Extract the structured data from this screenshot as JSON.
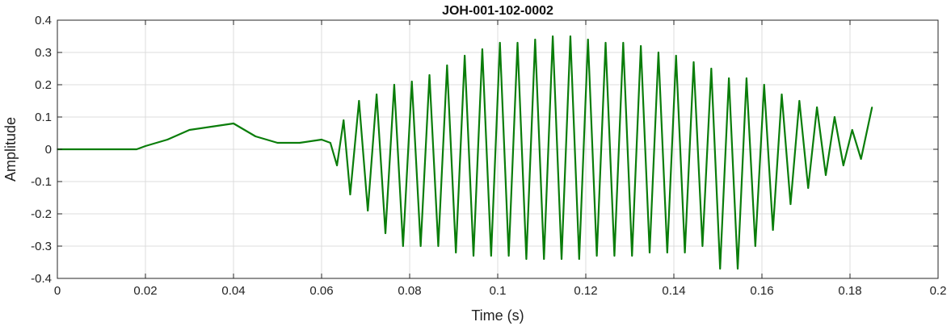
{
  "chart_data": {
    "type": "line",
    "title": "JOH-001-102-0002",
    "xlabel": "Time (s)",
    "ylabel": "Amplitude",
    "xlim": [
      0,
      0.2
    ],
    "ylim": [
      -0.4,
      0.4
    ],
    "xticks": [
      0,
      0.02,
      0.04,
      0.06,
      0.08,
      0.1,
      0.12,
      0.14,
      0.16,
      0.18,
      0.2
    ],
    "xtick_labels": [
      "0",
      "0.02",
      "0.04",
      "0.06",
      "0.08",
      "0.1",
      "0.12",
      "0.14",
      "0.16",
      "0.18",
      "0.2"
    ],
    "yticks": [
      0.4,
      0.3,
      0.2,
      0.1,
      0,
      -0.1,
      -0.2,
      -0.3,
      -0.4
    ],
    "ytick_labels": [
      "0.4",
      "0.3",
      "0.2",
      "0.1",
      "0",
      "-0.1",
      "-0.2",
      "-0.3",
      "-0.4"
    ],
    "grid": true,
    "line_color": "#0a7d0a",
    "series": [
      {
        "x": [
          0,
          0.018,
          0.02,
          0.025,
          0.03,
          0.035,
          0.04,
          0.045,
          0.05,
          0.055,
          0.06,
          0.062,
          0.0635,
          0.065,
          0.0665,
          0.0685,
          0.0705,
          0.0725,
          0.0745,
          0.0765,
          0.0785,
          0.0805,
          0.0825,
          0.0845,
          0.0865,
          0.0885,
          0.0905,
          0.0925,
          0.0945,
          0.0965,
          0.0985,
          0.1005,
          0.1025,
          0.1045,
          0.1065,
          0.1085,
          0.1105,
          0.1125,
          0.1145,
          0.1165,
          0.1185,
          0.1205,
          0.1225,
          0.1245,
          0.1265,
          0.1285,
          0.1305,
          0.1325,
          0.1345,
          0.1365,
          0.1385,
          0.1405,
          0.1425,
          0.1445,
          0.1465,
          0.1485,
          0.1505,
          0.1525,
          0.1545,
          0.1565,
          0.1585,
          0.1605,
          0.1625,
          0.1645,
          0.1665,
          0.1685,
          0.1705,
          0.1725,
          0.1745,
          0.1765,
          0.1785,
          0.1805,
          0.1825,
          0.185
        ],
        "y": [
          0,
          0,
          0.01,
          0.03,
          0.06,
          0.07,
          0.08,
          0.04,
          0.02,
          0.02,
          0.03,
          0.02,
          -0.05,
          0.09,
          -0.14,
          0.15,
          -0.19,
          0.17,
          -0.26,
          0.2,
          -0.3,
          0.21,
          -0.3,
          0.23,
          -0.3,
          0.26,
          -0.32,
          0.29,
          -0.33,
          0.31,
          -0.33,
          0.33,
          -0.33,
          0.33,
          -0.34,
          0.34,
          -0.34,
          0.35,
          -0.34,
          0.35,
          -0.34,
          0.34,
          -0.33,
          0.33,
          -0.33,
          0.33,
          -0.33,
          0.32,
          -0.32,
          0.3,
          -0.32,
          0.29,
          -0.32,
          0.27,
          -0.3,
          0.25,
          -0.37,
          0.22,
          -0.37,
          0.22,
          -0.3,
          0.2,
          -0.25,
          0.17,
          -0.17,
          0.15,
          -0.12,
          0.13,
          -0.08,
          0.1,
          -0.05,
          0.06,
          -0.03,
          0.13
        ]
      }
    ]
  }
}
